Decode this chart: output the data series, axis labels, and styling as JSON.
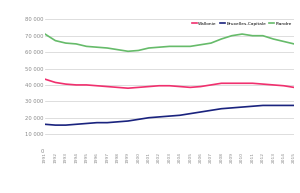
{
  "years": [
    1991,
    1992,
    1993,
    1994,
    1995,
    1996,
    1997,
    1998,
    1999,
    2000,
    2001,
    2002,
    2003,
    2004,
    2005,
    2006,
    2007,
    2008,
    2009,
    2010,
    2011,
    2012,
    2013,
    2014,
    2015
  ],
  "wallonie": [
    43500,
    41500,
    40500,
    40000,
    40000,
    39500,
    39000,
    38500,
    38000,
    38500,
    39000,
    39500,
    39500,
    39000,
    38500,
    39000,
    40000,
    41000,
    41000,
    41000,
    41000,
    40500,
    40000,
    39500,
    38500
  ],
  "bruxelles": [
    16000,
    15500,
    15500,
    16000,
    16500,
    17000,
    17000,
    17500,
    18000,
    19000,
    20000,
    20500,
    21000,
    21500,
    22500,
    23500,
    24500,
    25500,
    26000,
    26500,
    27000,
    27500,
    27500,
    27500,
    27500
  ],
  "flandre": [
    71000,
    67000,
    65500,
    65000,
    63500,
    63000,
    62500,
    61500,
    60500,
    61000,
    62500,
    63000,
    63500,
    63500,
    63500,
    64500,
    65500,
    68000,
    70000,
    71000,
    70000,
    70000,
    68000,
    66500,
    65000
  ],
  "wallonie_color": "#f0306e",
  "bruxelles_color": "#1a237e",
  "flandre_color": "#66bb6a",
  "bg_color": "#ffffff",
  "grid_color": "#d0d0d0",
  "ylim": [
    0,
    80000
  ],
  "yticks": [
    0,
    10000,
    20000,
    30000,
    40000,
    50000,
    60000,
    70000,
    80000
  ],
  "legend_labels": [
    "Wallonie",
    "Bruxelles-Capitale",
    "Flandre"
  ],
  "linewidth": 1.2
}
